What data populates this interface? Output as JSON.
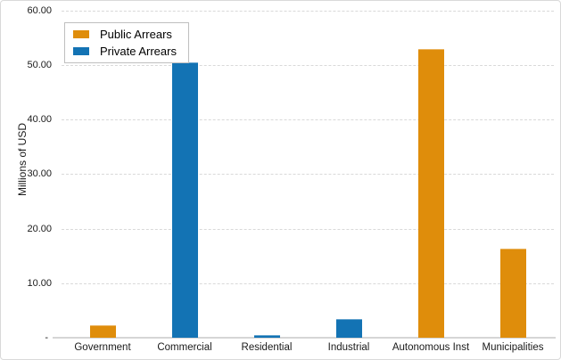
{
  "chart_data": {
    "type": "bar",
    "title": "",
    "xlabel": "",
    "ylabel": "Millions of USD",
    "categories": [
      "Government",
      "Commercial",
      "Residential",
      "Industrial",
      "Autonomous Inst",
      "Municipalities"
    ],
    "series": [
      {
        "name": "Public Arrears",
        "color": "#DF8D0B",
        "values": [
          2.3,
          0,
          0,
          0,
          52.9,
          16.4
        ]
      },
      {
        "name": "Private Arrears",
        "color": "#1373B4",
        "values": [
          0,
          50.5,
          0.5,
          3.4,
          0,
          0
        ]
      }
    ],
    "ylim": [
      0,
      60
    ],
    "yticks": [
      0,
      10,
      20,
      30,
      40,
      50,
      60
    ],
    "ytick_labels": [
      "-",
      "10.00",
      "20.00",
      "30.00",
      "40.00",
      "50.00",
      "60.00"
    ],
    "grid": "horizontal-dashed",
    "gridline_color": "#D9D9D9",
    "axis_line_color": "#D6D6D6",
    "legend_position": "top-left",
    "background": "#FFFFFF",
    "border_color": "#D9D9D9"
  }
}
